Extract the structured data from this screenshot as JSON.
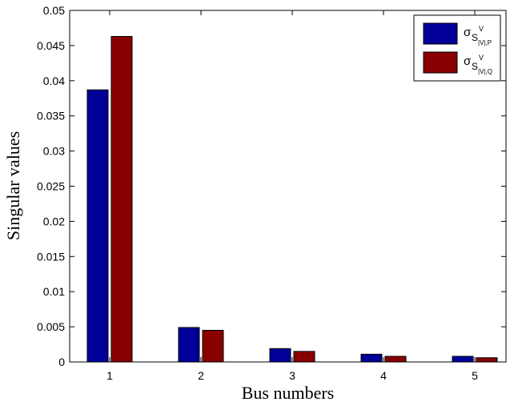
{
  "chart_data": {
    "type": "bar",
    "title": "",
    "xlabel": "Bus numbers",
    "ylabel": "Singular values",
    "categories": [
      "1",
      "2",
      "3",
      "4",
      "5"
    ],
    "ylim": [
      0,
      0.05
    ],
    "yticks": [
      "0",
      "0.005",
      "0.01",
      "0.015",
      "0.02",
      "0.025",
      "0.03",
      "0.035",
      "0.04",
      "0.045",
      "0.05"
    ],
    "grid": false,
    "legend_position": "top-right",
    "series": [
      {
        "legend_base": "σ",
        "legend_sub": "S",
        "legend_sup": "V",
        "legend_subsub": "|V|,P",
        "color": "#000099",
        "values": [
          0.0387,
          0.0049,
          0.0019,
          0.0011,
          0.0008
        ]
      },
      {
        "legend_base": "σ",
        "legend_sub": "S",
        "legend_sup": "V",
        "legend_subsub": "|V|,Q",
        "color": "#880000",
        "values": [
          0.0463,
          0.0045,
          0.0015,
          0.0008,
          0.0006
        ]
      }
    ]
  }
}
